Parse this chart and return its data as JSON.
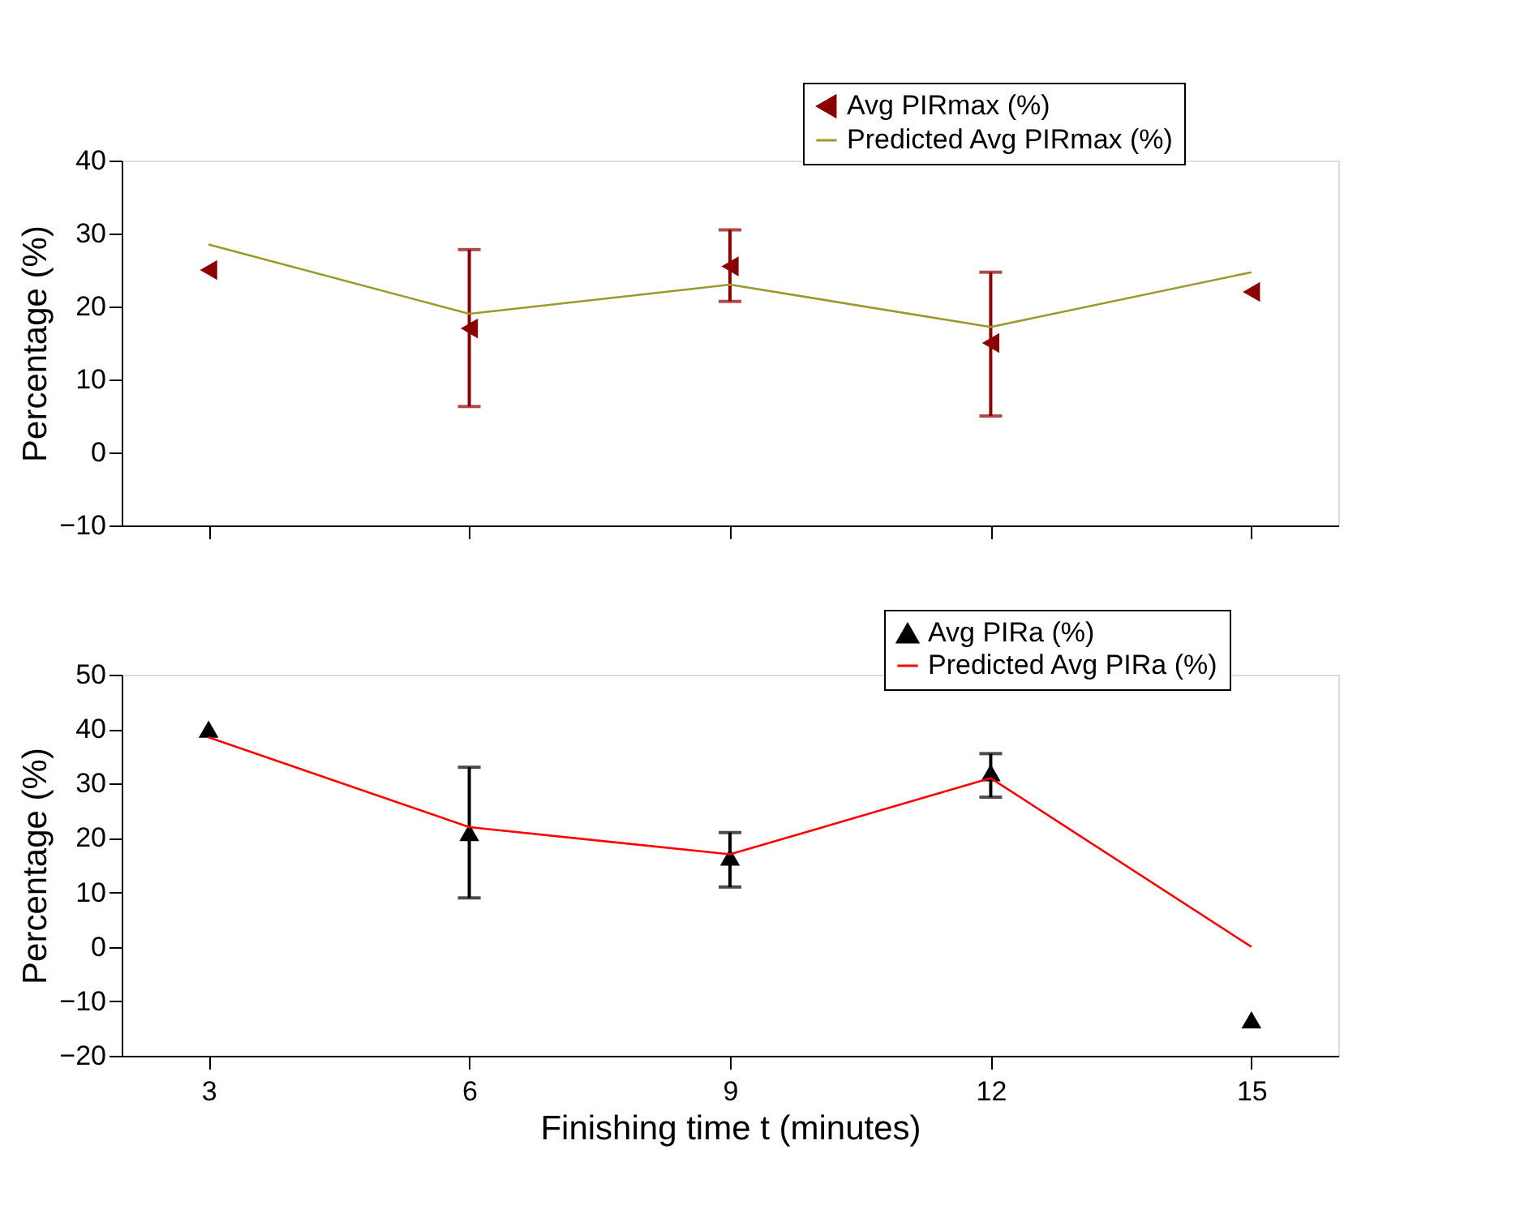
{
  "chart_data": [
    {
      "type": "scatter",
      "ylabel": "Percentage (%)",
      "x": [
        3,
        6,
        9,
        12,
        15
      ],
      "xlim": [
        2,
        16
      ],
      "xticks": [
        3,
        6,
        9,
        12,
        15
      ],
      "ylim": [
        -10,
        40
      ],
      "yticks": [
        -10,
        0,
        10,
        20,
        30,
        40
      ],
      "tick_labels": "y",
      "legend": "top right",
      "grid": false,
      "series": [
        {
          "name": "Avg PIRmax (%)",
          "marker": "triangle-left",
          "color": "#8b0000",
          "values": [
            25,
            17,
            25.5,
            15,
            22
          ],
          "errors": [
            null,
            [
              6.3,
              27.8
            ],
            [
              20.7,
              30.5
            ],
            [
              5,
              24.7
            ],
            null
          ]
        },
        {
          "name": "Predicted Avg PIRmax (%)",
          "type": "line",
          "marker": "none",
          "color": "#9a9a2a",
          "values": [
            28.5,
            19,
            23,
            17.2,
            24.7
          ]
        }
      ]
    },
    {
      "type": "scatter",
      "ylabel": "Percentage (%)",
      "xlabel": "Finishing time t (minutes)",
      "x": [
        3,
        6,
        9,
        12,
        15
      ],
      "xlim": [
        2,
        16
      ],
      "xticks": [
        3,
        6,
        9,
        12,
        15
      ],
      "ylim": [
        -20,
        50
      ],
      "yticks": [
        -20,
        -10,
        0,
        10,
        20,
        30,
        40,
        50
      ],
      "legend": "top right",
      "grid": false,
      "series": [
        {
          "name": "Avg PIRa (%)",
          "marker": "triangle",
          "color": "#000000",
          "values": [
            40,
            21,
            16.5,
            32,
            -13.4
          ],
          "errors": [
            null,
            [
              9,
              33
            ],
            [
              11,
              21
            ],
            [
              27.5,
              35.5
            ],
            null
          ]
        },
        {
          "name": "Predicted Avg PIRa (%)",
          "type": "line",
          "marker": "none",
          "color": "#ff0000",
          "values": [
            38.5,
            22,
            17,
            31,
            0
          ]
        }
      ]
    }
  ]
}
